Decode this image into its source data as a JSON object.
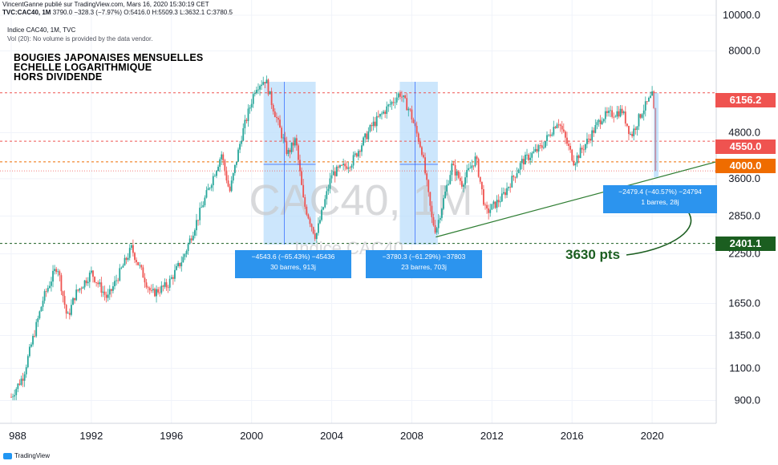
{
  "header": {
    "line1": "VincentGanne publié sur TradingView.com, Mars 16, 2020 15:30:19 CET",
    "symbol": "TVC:CAC40, 1M",
    "open": "3790.0",
    "change": "−328.3 (−7.97%)",
    "ohlc": "O:5416.0  H:5509.3  L:3632.1  C:3780.5",
    "title": "Indice CAC40, 1M, TVC",
    "volume_note": "Vol (20): No volume is provided by the data vendor."
  },
  "annotation": {
    "line1": "BOUGIES JAPONAISES MENSUELLES",
    "line2": "ECHELLE LOGARITHMIQUE",
    "line3": "HORS DIVIDENDE"
  },
  "watermark": {
    "symbol": "CAC40, 1M",
    "name": "Indice CAC40"
  },
  "measures": [
    {
      "line1": "−4543.6 (−65.43%) −45436",
      "line2": "30 barres, 913j"
    },
    {
      "line1": "−3780.3 (−61.29%) −37803",
      "line2": "23 barres, 703j"
    },
    {
      "line1": "−2479.4 (−40.57%) −24794",
      "line2": "1 barres, 28j"
    }
  ],
  "callout": "3630 pts",
  "price_tags": [
    {
      "label": "6156.2",
      "color": "#ef5350"
    },
    {
      "label": "4550.0",
      "color": "#ef5350"
    },
    {
      "label": "4000.0",
      "color": "#ef6c00"
    },
    {
      "label": "2401.1",
      "color": "#1b5e20"
    }
  ],
  "footer": {
    "brand": "TradingView"
  },
  "colors": {
    "up": "#26a69a",
    "down": "#ef5350",
    "trend": "#2e7d32",
    "zone": "#bbdefb"
  },
  "chart_data": {
    "type": "candlestick",
    "scale": "log",
    "y_ticks": [
      900,
      1100,
      1350,
      1650,
      2250,
      2850,
      3600,
      4800,
      8000,
      10000
    ],
    "y_tick_labels": [
      "900.0",
      "1100.0",
      "1350.0",
      "1650.0",
      "2250.0",
      "2850.0",
      "3600.0",
      "4800.0",
      "8000.0",
      "10000.0"
    ],
    "x_ticks": [
      "988",
      "1992",
      "1996",
      "2000",
      "2004",
      "2008",
      "2012",
      "2016",
      "2020"
    ],
    "ylim": [
      780,
      11000
    ],
    "xlim": [
      1988,
      2023.2
    ],
    "levels": [
      6156.2,
      4550.0,
      4000.0,
      2401.1
    ],
    "trendline": [
      {
        "x": 2009.2,
        "y": 2500
      },
      {
        "x": 2023.2,
        "y": 4000
      }
    ],
    "down_zones": [
      {
        "x0": 2000.6,
        "x1": 2003.2
      },
      {
        "x0": 2007.4,
        "x1": 2009.3
      }
    ],
    "anchors": [
      {
        "x": 1988.0,
        "y": 920
      },
      {
        "x": 1988.6,
        "y": 1050
      },
      {
        "x": 1989.6,
        "y": 1700
      },
      {
        "x": 1990.3,
        "y": 2100
      },
      {
        "x": 1990.8,
        "y": 1500
      },
      {
        "x": 1991.2,
        "y": 1750
      },
      {
        "x": 1992.0,
        "y": 2000
      },
      {
        "x": 1992.8,
        "y": 1700
      },
      {
        "x": 1994.0,
        "y": 2330
      },
      {
        "x": 1995.0,
        "y": 1750
      },
      {
        "x": 1995.8,
        "y": 1850
      },
      {
        "x": 1996.6,
        "y": 2200
      },
      {
        "x": 1997.5,
        "y": 3000
      },
      {
        "x": 1998.5,
        "y": 4200
      },
      {
        "x": 1998.9,
        "y": 3300
      },
      {
        "x": 1999.5,
        "y": 4700
      },
      {
        "x": 2000.2,
        "y": 6400
      },
      {
        "x": 2000.7,
        "y": 6700
      },
      {
        "x": 2001.0,
        "y": 5800
      },
      {
        "x": 2001.8,
        "y": 4200
      },
      {
        "x": 2002.2,
        "y": 4600
      },
      {
        "x": 2002.6,
        "y": 3100
      },
      {
        "x": 2003.2,
        "y": 2500
      },
      {
        "x": 2004.0,
        "y": 3700
      },
      {
        "x": 2005.0,
        "y": 4000
      },
      {
        "x": 2006.0,
        "y": 5000
      },
      {
        "x": 2007.4,
        "y": 6150
      },
      {
        "x": 2007.9,
        "y": 5500
      },
      {
        "x": 2008.5,
        "y": 4300
      },
      {
        "x": 2009.0,
        "y": 2800
      },
      {
        "x": 2009.2,
        "y": 2600
      },
      {
        "x": 2010.0,
        "y": 3900
      },
      {
        "x": 2010.5,
        "y": 3500
      },
      {
        "x": 2011.2,
        "y": 4100
      },
      {
        "x": 2011.7,
        "y": 2900
      },
      {
        "x": 2012.5,
        "y": 3200
      },
      {
        "x": 2013.5,
        "y": 4000
      },
      {
        "x": 2014.5,
        "y": 4400
      },
      {
        "x": 2015.3,
        "y": 5200
      },
      {
        "x": 2016.1,
        "y": 4000
      },
      {
        "x": 2016.7,
        "y": 4500
      },
      {
        "x": 2017.5,
        "y": 5300
      },
      {
        "x": 2018.5,
        "y": 5500
      },
      {
        "x": 2018.95,
        "y": 4700
      },
      {
        "x": 2019.5,
        "y": 5500
      },
      {
        "x": 2020.05,
        "y": 6100
      },
      {
        "x": 2020.2,
        "y": 3780
      }
    ]
  }
}
